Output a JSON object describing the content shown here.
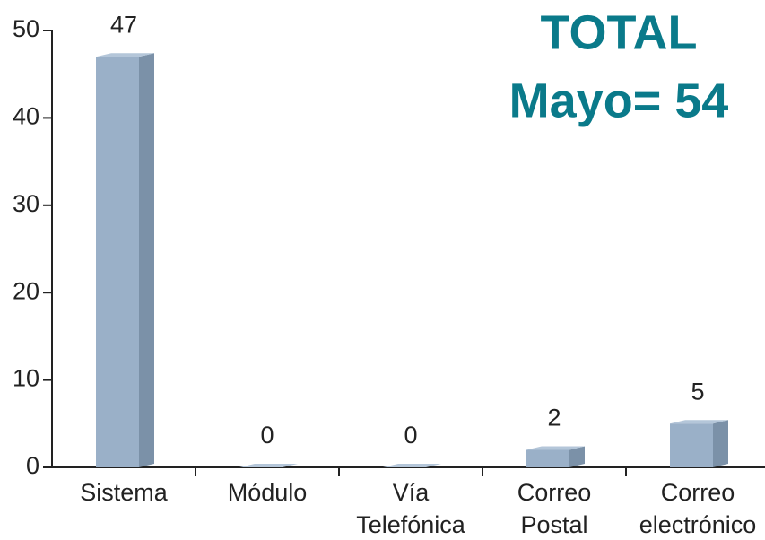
{
  "chart_data": {
    "type": "bar3d",
    "annotation": [
      "TOTAL",
      "Mayo= 54"
    ],
    "categories": [
      [
        "Sistema"
      ],
      [
        "Módulo"
      ],
      [
        "Vía",
        "Telefónica"
      ],
      [
        "Correo",
        "Postal"
      ],
      [
        "Correo",
        "electrónico"
      ]
    ],
    "values": [
      47,
      0,
      0,
      2,
      5
    ],
    "color": "#9ab0c8",
    "ylim": [
      0,
      50
    ],
    "yticks": [
      0,
      10,
      20,
      30,
      40,
      50
    ]
  }
}
